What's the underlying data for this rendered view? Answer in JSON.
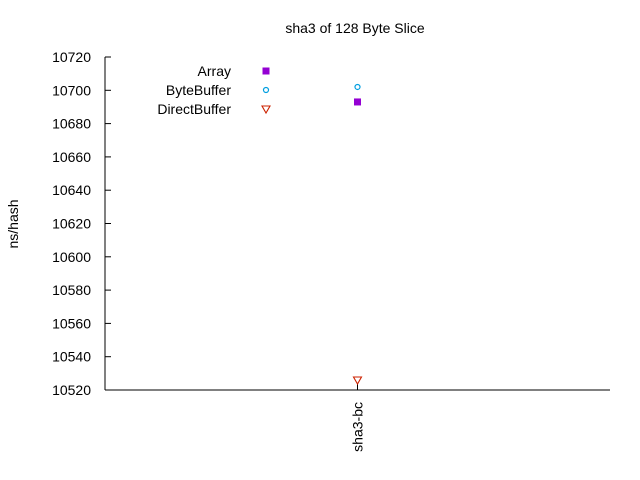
{
  "chart_data": {
    "type": "scatter",
    "title": "sha3 of 128 Byte Slice",
    "xlabel": "",
    "ylabel": "ns/hash",
    "categories": [
      "sha3-bc"
    ],
    "ylim": [
      10520,
      10720
    ],
    "yticks": [
      10520,
      10540,
      10560,
      10580,
      10600,
      10620,
      10640,
      10660,
      10680,
      10700,
      10720
    ],
    "grid": false,
    "legend_position": "top-left",
    "series": [
      {
        "name": "Array",
        "marker": "filled-square",
        "color": "#9400d3",
        "values": [
          10693
        ]
      },
      {
        "name": "ByteBuffer",
        "marker": "open-circle",
        "color": "#009ee0",
        "values": [
          10702
        ]
      },
      {
        "name": "DirectBuffer",
        "marker": "open-triangle-down",
        "color": "#cc2200",
        "values": [
          10526
        ]
      }
    ]
  }
}
